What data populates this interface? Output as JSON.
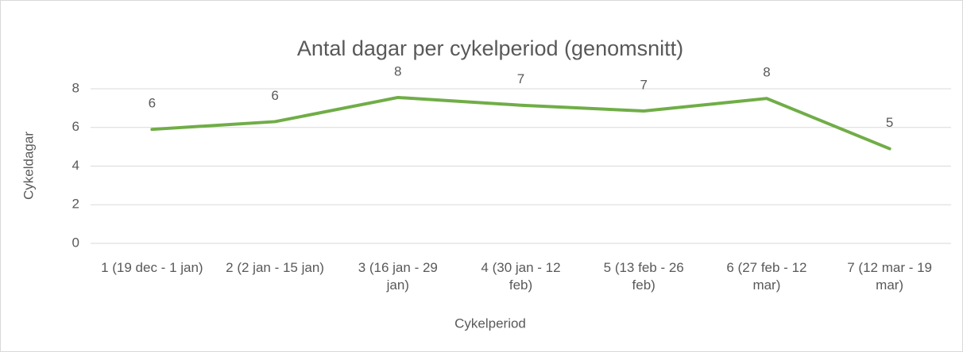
{
  "chart_data": {
    "type": "line",
    "title": "Antal dagar per cykelperiod (genomsnitt)",
    "x_label": "Cykelperiod",
    "y_label": "Cykeldagar",
    "categories": [
      "1 (19 dec - 1 jan)",
      "2 (2 jan - 15 jan)",
      "3 (16 jan - 29 jan)",
      "4 (30 jan - 12 feb)",
      "5 (13 feb - 26 feb)",
      "6 (27 feb - 12 mar)",
      "7 (12 mar - 19 mar)"
    ],
    "series": [
      {
        "name": "Cykeldagar",
        "color": "#70ad47",
        "values": [
          5.9,
          6.3,
          7.55,
          7.15,
          6.85,
          7.5,
          4.9
        ],
        "value_labels": [
          "6",
          "6",
          "8",
          "7",
          "7",
          "8",
          "5"
        ]
      }
    ],
    "ylim": [
      0,
      8
    ],
    "yticks": [
      0,
      2,
      4,
      6,
      8
    ],
    "grid": true
  }
}
